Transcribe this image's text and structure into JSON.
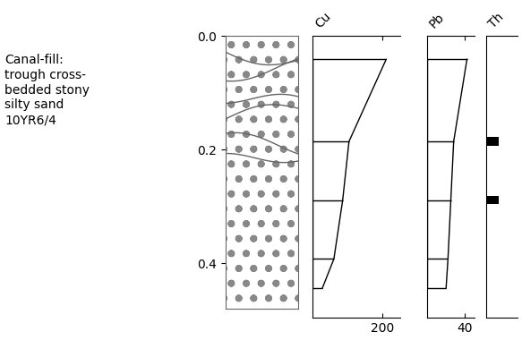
{
  "lithology": {
    "description": [
      "Canal-fill:",
      "trough cross-",
      "bedded stony",
      "silty sand",
      "10YR6/4"
    ],
    "ylim": [
      0,
      0.48
    ],
    "yticks": [
      {
        "value": 0,
        "label": "0.0"
      },
      {
        "value": 0.2,
        "label": "0.2"
      },
      {
        "value": 0.4,
        "label": "0.4"
      }
    ]
  },
  "chart_data": [
    {
      "type": "line",
      "title": "Cu",
      "orientation": "horizontal",
      "depth": [
        0.04,
        0.18,
        0.28,
        0.38,
        0.43
      ],
      "values": [
        210,
        104,
        86,
        61,
        28
      ],
      "xlim": [
        0,
        250
      ],
      "xticks": [
        200
      ],
      "ylim": [
        0,
        0.48
      ],
      "tick_labels": "x",
      "color": "#000000"
    },
    {
      "type": "line",
      "title": "Pb",
      "orientation": "horizontal",
      "depth": [
        0.04,
        0.18,
        0.28,
        0.38,
        0.43
      ],
      "values": [
        42,
        28,
        25,
        22,
        20
      ],
      "xlim": [
        0,
        50
      ],
      "xticks": [
        40
      ],
      "ylim": [
        0,
        0.48
      ],
      "tick_labels": "x",
      "color": "#000000"
    },
    {
      "type": "bar",
      "title": "Th",
      "orientation": "horizontal",
      "depth": [
        0.18,
        0.28
      ],
      "values": [
        8,
        8
      ],
      "xlim": [
        0,
        20
      ],
      "ylim": [
        0,
        0.48
      ],
      "tick_labels": false,
      "color": "#000000"
    }
  ]
}
